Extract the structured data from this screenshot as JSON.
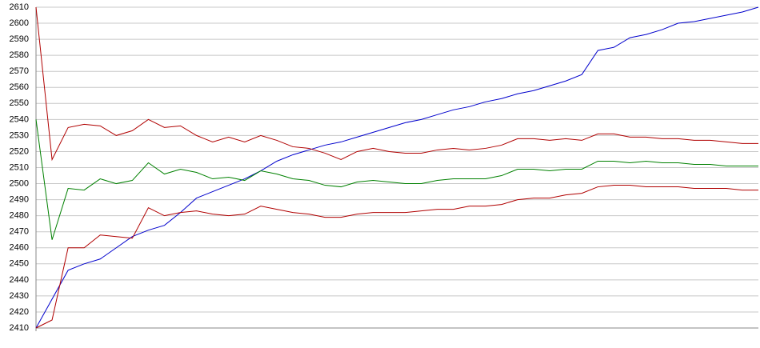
{
  "chart_data": {
    "type": "line",
    "ylim": [
      2410,
      2610
    ],
    "yticks": [
      2410,
      2420,
      2430,
      2440,
      2450,
      2460,
      2470,
      2480,
      2490,
      2500,
      2510,
      2520,
      2530,
      2540,
      2550,
      2560,
      2570,
      2580,
      2590,
      2600,
      2610
    ],
    "grid": true,
    "series": [
      {
        "color": "#0000cc",
        "values": [
          2410,
          2428,
          2446,
          2450,
          2453,
          2460,
          2467,
          2471,
          2474,
          2482,
          2491,
          2495,
          2499,
          2503,
          2508,
          2514,
          2518,
          2521,
          2524,
          2526,
          2529,
          2532,
          2535,
          2538,
          2540,
          2543,
          2546,
          2548,
          2551,
          2553,
          2556,
          2558,
          2561,
          2564,
          2568,
          2583,
          2585,
          2591,
          2593,
          2596,
          2600,
          2601,
          2603,
          2605,
          2607,
          2610
        ]
      },
      {
        "color": "#b00000",
        "values": [
          2610,
          2515,
          2535,
          2537,
          2536,
          2530,
          2533,
          2540,
          2535,
          2536,
          2530,
          2526,
          2529,
          2526,
          2530,
          2527,
          2523,
          2522,
          2519,
          2515,
          2520,
          2522,
          2520,
          2519,
          2519,
          2521,
          2522,
          2521,
          2522,
          2524,
          2528,
          2528,
          2527,
          2528,
          2527,
          2531,
          2531,
          2529,
          2529,
          2528,
          2528,
          2527,
          2527,
          2526,
          2525,
          2525
        ]
      },
      {
        "color": "#008000",
        "values": [
          2540,
          2465,
          2497,
          2496,
          2503,
          2500,
          2502,
          2513,
          2506,
          2509,
          2507,
          2503,
          2504,
          2502,
          2508,
          2506,
          2503,
          2502,
          2499,
          2498,
          2501,
          2502,
          2501,
          2500,
          2500,
          2502,
          2503,
          2503,
          2503,
          2505,
          2509,
          2509,
          2508,
          2509,
          2509,
          2514,
          2514,
          2513,
          2514,
          2513,
          2513,
          2512,
          2512,
          2511,
          2511,
          2511
        ]
      },
      {
        "color": "#b00000",
        "values": [
          2410,
          2415,
          2460,
          2460,
          2468,
          2467,
          2466,
          2485,
          2480,
          2482,
          2483,
          2481,
          2480,
          2481,
          2486,
          2484,
          2482,
          2481,
          2479,
          2479,
          2481,
          2482,
          2482,
          2482,
          2483,
          2484,
          2484,
          2486,
          2486,
          2487,
          2490,
          2491,
          2491,
          2493,
          2494,
          2498,
          2499,
          2499,
          2498,
          2498,
          2498,
          2497,
          2497,
          2497,
          2496,
          2496
        ]
      }
    ]
  }
}
